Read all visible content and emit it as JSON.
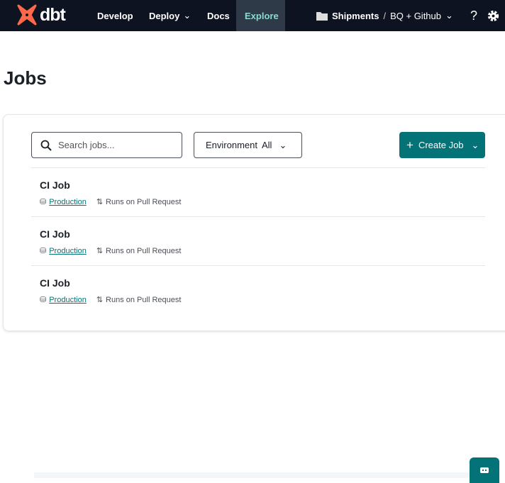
{
  "nav": {
    "logo": "dbt",
    "items": [
      {
        "label": "Develop"
      },
      {
        "label": "Deploy"
      },
      {
        "label": "Docs"
      },
      {
        "label": "Explore"
      }
    ],
    "project": "Shipments",
    "separator": "/",
    "environment": "BQ + Github",
    "help": "?"
  },
  "page": {
    "title": "Jobs"
  },
  "toolbar": {
    "search_placeholder": "Search jobs...",
    "env_label": "Environment",
    "env_value": "All",
    "create_label": "Create Job"
  },
  "jobs": [
    {
      "name": "CI Job",
      "environment": "Production",
      "trigger": "Runs on Pull Request"
    },
    {
      "name": "CI Job",
      "environment": "Production",
      "trigger": "Runs on Pull Request"
    },
    {
      "name": "CI Job",
      "environment": "Production",
      "trigger": "Runs on Pull Request"
    }
  ],
  "colors": {
    "nav_bg": "#0d1321",
    "accent": "#047377",
    "logo": "#ff694a"
  }
}
